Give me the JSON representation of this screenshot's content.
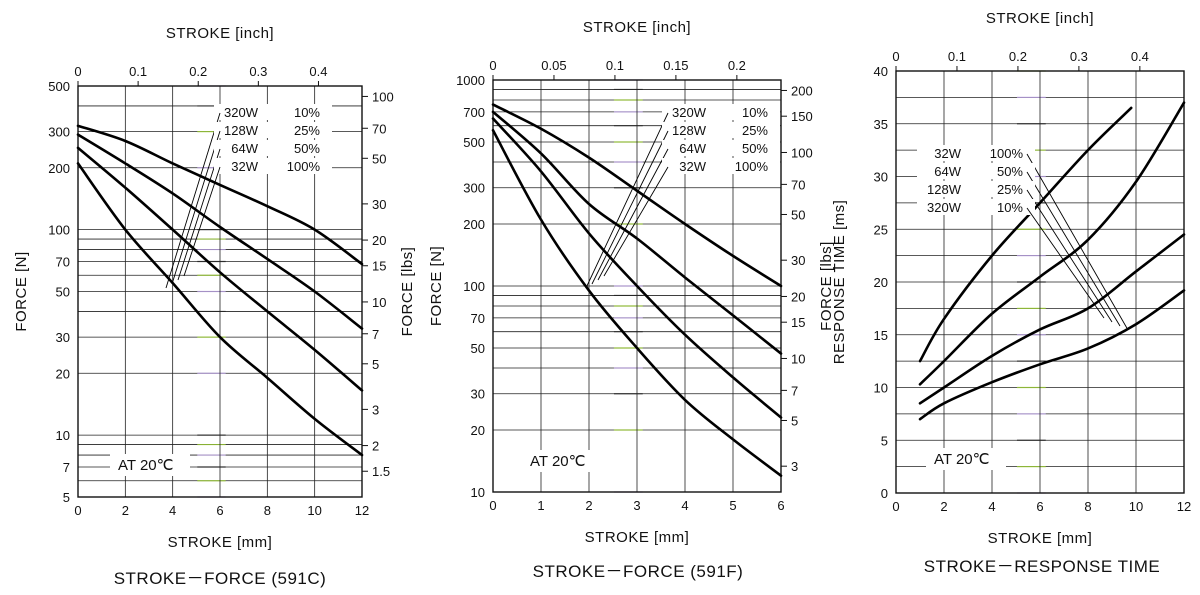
{
  "colors": {
    "frame": "#111111",
    "curve": "#000000",
    "grid": "#222222",
    "accent_green": "#9acd32",
    "accent_purple": "#b9a0e0"
  },
  "chart_data": [
    {
      "type": "line",
      "title": "STROKE－FORCE (591C)",
      "xlabel": "STROKE [mm]",
      "x2label": "STROKE [inch]",
      "ylabel": "FORCE [N]",
      "y2label": "FORCE [lbs]",
      "annotation": "AT 20℃",
      "xlim": [
        0,
        12
      ],
      "ylim": [
        5,
        500
      ],
      "yscale": "log",
      "grid": true,
      "xticks": [
        0,
        2,
        4,
        6,
        8,
        10,
        12
      ],
      "xtick_labels": [
        "0",
        "2",
        "4",
        "6",
        "8",
        "10",
        "12"
      ],
      "yticks": [
        5,
        7,
        10,
        20,
        30,
        50,
        70,
        100,
        200,
        300,
        500
      ],
      "ytick_labels": [
        "5",
        "7",
        "10",
        "20",
        "30",
        "50",
        "70",
        "100",
        "200",
        "300",
        "500"
      ],
      "x2ticks": [
        0,
        0.1,
        0.2,
        0.3,
        0.4
      ],
      "x2tick_labels": [
        "0",
        "0.1",
        "0.2",
        "0.3",
        "0.4"
      ],
      "y2ticks": [
        1.5,
        2,
        3,
        5,
        7,
        10,
        15,
        20,
        30,
        50,
        70,
        100
      ],
      "y2tick_labels": [
        "1.5",
        "2",
        "3",
        "5",
        "7",
        "10",
        "15",
        "20",
        "30",
        "50",
        "70",
        "100"
      ],
      "legend": [
        {
          "watt": "320W",
          "duty": "10%"
        },
        {
          "watt": "128W",
          "duty": "25%"
        },
        {
          "watt": "64W",
          "duty": "50%"
        },
        {
          "watt": "32W",
          "duty": "100%"
        }
      ],
      "series": [
        {
          "x": [
            0,
            2,
            4,
            6,
            8,
            10,
            12
          ],
          "values": [
            320,
            270,
            210,
            165,
            130,
            100,
            68
          ]
        },
        {
          "x": [
            0,
            2,
            4,
            6,
            8,
            10,
            12
          ],
          "values": [
            290,
            210,
            150,
            103,
            72,
            50,
            33
          ]
        },
        {
          "x": [
            0,
            2,
            4,
            6,
            8,
            10,
            12
          ],
          "values": [
            250,
            160,
            100,
            62,
            40,
            26,
            16.5
          ]
        },
        {
          "x": [
            0,
            2,
            4,
            6,
            8,
            10,
            12
          ],
          "values": [
            210,
            100,
            55,
            30,
            19,
            12,
            8
          ]
        }
      ]
    },
    {
      "type": "line",
      "title": "STROKE－FORCE (591F)",
      "xlabel": "STROKE [mm]",
      "x2label": "STROKE [inch]",
      "ylabel": "FORCE [N]",
      "y2label": "FORCE [lbs]",
      "annotation": "AT 20℃",
      "xlim": [
        0,
        6
      ],
      "ylim": [
        10,
        1000
      ],
      "yscale": "log",
      "grid": true,
      "xticks": [
        0,
        1,
        2,
        3,
        4,
        5,
        6
      ],
      "xtick_labels": [
        "0",
        "1",
        "2",
        "3",
        "4",
        "5",
        "6"
      ],
      "yticks": [
        10,
        20,
        30,
        50,
        70,
        100,
        200,
        300,
        500,
        700,
        1000
      ],
      "ytick_labels": [
        "10",
        "20",
        "30",
        "50",
        "70",
        "100",
        "200",
        "300",
        "500",
        "700",
        "1000"
      ],
      "x2ticks": [
        0,
        0.05,
        0.1,
        0.15,
        0.2
      ],
      "x2tick_labels": [
        "0",
        "0.05",
        "0.1",
        "0.15",
        "0.2"
      ],
      "y2ticks": [
        3,
        5,
        7,
        10,
        15,
        20,
        30,
        50,
        70,
        100,
        150,
        200
      ],
      "y2tick_labels": [
        "3",
        "5",
        "7",
        "10",
        "15",
        "20",
        "30",
        "50",
        "70",
        "100",
        "150",
        "200"
      ],
      "legend": [
        {
          "watt": "320W",
          "duty": "10%"
        },
        {
          "watt": "128W",
          "duty": "25%"
        },
        {
          "watt": "64W",
          "duty": "50%"
        },
        {
          "watt": "32W",
          "duty": "100%"
        }
      ],
      "series": [
        {
          "x": [
            0,
            1,
            2,
            3,
            4,
            5,
            6
          ],
          "values": [
            760,
            580,
            420,
            290,
            200,
            140,
            100
          ]
        },
        {
          "x": [
            0,
            1,
            2,
            3,
            4,
            5,
            6
          ],
          "values": [
            700,
            440,
            250,
            170,
            110,
            72,
            47
          ]
        },
        {
          "x": [
            0,
            1,
            2,
            3,
            4,
            5,
            6
          ],
          "values": [
            650,
            360,
            180,
            100,
            58,
            36,
            23
          ]
        },
        {
          "x": [
            0,
            1,
            2,
            3,
            4,
            5,
            6
          ],
          "values": [
            570,
            210,
            95,
            50,
            28,
            18,
            12
          ]
        }
      ]
    },
    {
      "type": "line",
      "title": "STROKE－RESPONSE TIME",
      "xlabel": "STROKE [mm]",
      "x2label": "STROKE [inch]",
      "ylabel": "RESPONSE TIME [ms]",
      "annotation": "AT 20℃",
      "xlim": [
        0,
        12
      ],
      "ylim": [
        0,
        40
      ],
      "yscale": "linear",
      "grid": true,
      "xticks": [
        0,
        2,
        4,
        6,
        8,
        10,
        12
      ],
      "xtick_labels": [
        "0",
        "2",
        "4",
        "6",
        "8",
        "10",
        "12"
      ],
      "yticks": [
        0,
        5,
        10,
        15,
        20,
        25,
        30,
        35,
        40
      ],
      "ytick_labels": [
        "0",
        "5",
        "10",
        "15",
        "20",
        "25",
        "30",
        "35",
        "40"
      ],
      "x2ticks": [
        0,
        0.1,
        0.2,
        0.3,
        0.4
      ],
      "x2tick_labels": [
        "0",
        "0.1",
        "0.2",
        "0.3",
        "0.4"
      ],
      "legend": [
        {
          "watt": "32W",
          "duty": "100%"
        },
        {
          "watt": "64W",
          "duty": "50%"
        },
        {
          "watt": "128W",
          "duty": "25%"
        },
        {
          "watt": "320W",
          "duty": "10%"
        }
      ],
      "series": [
        {
          "x": [
            1,
            2,
            4,
            6,
            8,
            9.8
          ],
          "values": [
            12.5,
            16.5,
            22.5,
            27.5,
            32.5,
            36.5
          ]
        },
        {
          "x": [
            1,
            2,
            4,
            6,
            8,
            10,
            12
          ],
          "values": [
            10.3,
            12.5,
            17,
            20.5,
            24,
            29.5,
            37
          ]
        },
        {
          "x": [
            1,
            2,
            4,
            6,
            8,
            10,
            12
          ],
          "values": [
            8.5,
            10,
            13,
            15.5,
            17.5,
            21,
            24.5
          ]
        },
        {
          "x": [
            1,
            2,
            4,
            6,
            8,
            10,
            12
          ],
          "values": [
            7,
            8.5,
            10.5,
            12.2,
            13.7,
            16,
            19.2
          ]
        }
      ]
    }
  ]
}
